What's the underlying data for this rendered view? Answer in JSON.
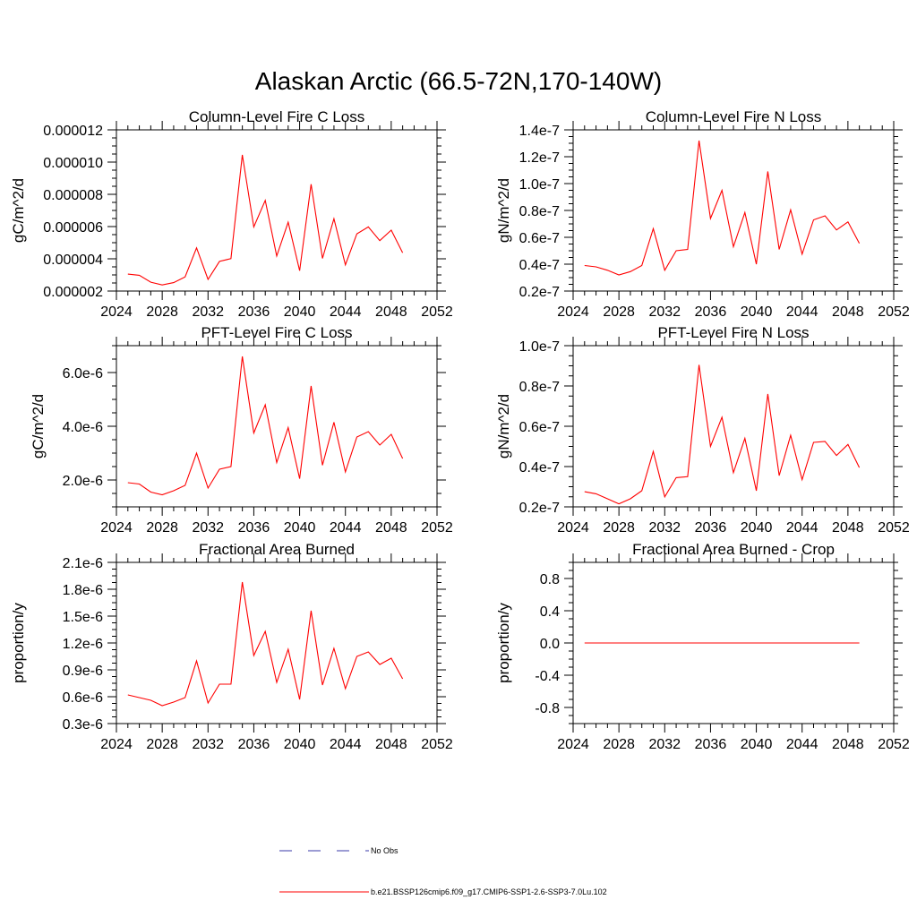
{
  "figure": {
    "title": "Alaskan Arctic (66.5-72N,170-140W)"
  },
  "legend": {
    "entries": [
      {
        "label": "No Obs",
        "color": "#3a3aa8",
        "dash": "dashed"
      },
      {
        "label": "b.e21.BSSP126cmip6.f09_g17.CMIP6-SSP1-2.6-SSP3-7.0Lu.102",
        "color": "#ff0000",
        "dash": "solid"
      }
    ]
  },
  "chart_data": [
    {
      "type": "line",
      "title": "Column-Level Fire C Loss",
      "ylabel": "gC/m^2/d",
      "xlim": [
        2024,
        2052
      ],
      "ylim": [
        2e-06,
        1.2e-05
      ],
      "xticks": [
        2024,
        2028,
        2032,
        2036,
        2040,
        2044,
        2048,
        2052
      ],
      "yticks": [
        2e-06,
        4e-06,
        6e-06,
        8e-06,
        1e-05,
        1.2e-05
      ],
      "ytick_labels": [
        "0.000002",
        "0.000004",
        "0.000006",
        "0.000008",
        "0.000010",
        "0.000012"
      ],
      "x": [
        2025,
        2026,
        2027,
        2028,
        2029,
        2030,
        2031,
        2032,
        2033,
        2034,
        2035,
        2036,
        2037,
        2038,
        2039,
        2040,
        2041,
        2042,
        2043,
        2044,
        2045,
        2046,
        2047,
        2048,
        2049
      ],
      "series": [
        {
          "color": "#ff0000",
          "values": [
            3.05e-06,
            2.98e-06,
            2.55e-06,
            2.38e-06,
            2.52e-06,
            2.88e-06,
            4.68e-06,
            2.72e-06,
            3.84e-06,
            4.01e-06,
            1.045e-05,
            5.98e-06,
            7.62e-06,
            4.17e-06,
            6.27e-06,
            3.26e-06,
            8.63e-06,
            4.02e-06,
            6.49e-06,
            3.63e-06,
            5.55e-06,
            5.98e-06,
            5.13e-06,
            5.78e-06,
            4.38e-06
          ]
        }
      ]
    },
    {
      "type": "line",
      "title": "Column-Level Fire N Loss",
      "ylabel": "gN/m^2/d",
      "xlim": [
        2024,
        2052
      ],
      "ylim": [
        2e-08,
        1.4e-07
      ],
      "xticks": [
        2024,
        2028,
        2032,
        2036,
        2040,
        2044,
        2048,
        2052
      ],
      "yticks": [
        2e-08,
        4e-08,
        6e-08,
        8e-08,
        1e-07,
        1.2e-07,
        1.4e-07
      ],
      "ytick_labels": [
        "0.2e-7",
        "0.4e-7",
        "0.6e-7",
        "0.8e-7",
        "1.0e-7",
        "1.2e-7",
        "1.4e-7"
      ],
      "x": [
        2025,
        2026,
        2027,
        2028,
        2029,
        2030,
        2031,
        2032,
        2033,
        2034,
        2035,
        2036,
        2037,
        2038,
        2039,
        2040,
        2041,
        2042,
        2043,
        2044,
        2045,
        2046,
        2047,
        2048,
        2049
      ],
      "series": [
        {
          "color": "#ff0000",
          "values": [
            3.9e-08,
            3.8e-08,
            3.55e-08,
            3.2e-08,
            3.45e-08,
            3.9e-08,
            6.65e-08,
            3.55e-08,
            5e-08,
            5.1e-08,
            1.32e-07,
            7.4e-08,
            9.5e-08,
            5.3e-08,
            7.85e-08,
            4e-08,
            1.09e-07,
            5.1e-08,
            8.05e-08,
            4.75e-08,
            7.3e-08,
            7.6e-08,
            6.55e-08,
            7.15e-08,
            5.55e-08
          ]
        }
      ]
    },
    {
      "type": "line",
      "title": "PFT-Level Fire C Loss",
      "ylabel": "gC/m^2/d",
      "xlim": [
        2024,
        2052
      ],
      "ylim": [
        1e-06,
        7e-06
      ],
      "xticks": [
        2024,
        2028,
        2032,
        2036,
        2040,
        2044,
        2048,
        2052
      ],
      "yticks": [
        2e-06,
        4e-06,
        6e-06
      ],
      "ytick_labels": [
        "2.0e-6",
        "4.0e-6",
        "6.0e-6"
      ],
      "x": [
        2025,
        2026,
        2027,
        2028,
        2029,
        2030,
        2031,
        2032,
        2033,
        2034,
        2035,
        2036,
        2037,
        2038,
        2039,
        2040,
        2041,
        2042,
        2043,
        2044,
        2045,
        2046,
        2047,
        2048,
        2049
      ],
      "series": [
        {
          "color": "#ff0000",
          "values": [
            1.9e-06,
            1.85e-06,
            1.55e-06,
            1.45e-06,
            1.6e-06,
            1.8e-06,
            3e-06,
            1.7e-06,
            2.4e-06,
            2.5e-06,
            6.6e-06,
            3.75e-06,
            4.8e-06,
            2.65e-06,
            3.95e-06,
            2.05e-06,
            5.5e-06,
            2.55e-06,
            4.15e-06,
            2.3e-06,
            3.6e-06,
            3.8e-06,
            3.3e-06,
            3.7e-06,
            2.8e-06
          ]
        }
      ]
    },
    {
      "type": "line",
      "title": "PFT-Level Fire N Loss",
      "ylabel": "gN/m^2/d",
      "xlim": [
        2024,
        2052
      ],
      "ylim": [
        2e-08,
        1e-07
      ],
      "xticks": [
        2024,
        2028,
        2032,
        2036,
        2040,
        2044,
        2048,
        2052
      ],
      "yticks": [
        2e-08,
        4e-08,
        6e-08,
        8e-08,
        1e-07
      ],
      "ytick_labels": [
        "0.2e-7",
        "0.4e-7",
        "0.6e-7",
        "0.8e-7",
        "1.0e-7"
      ],
      "x": [
        2025,
        2026,
        2027,
        2028,
        2029,
        2030,
        2031,
        2032,
        2033,
        2034,
        2035,
        2036,
        2037,
        2038,
        2039,
        2040,
        2041,
        2042,
        2043,
        2044,
        2045,
        2046,
        2047,
        2048,
        2049
      ],
      "series": [
        {
          "color": "#ff0000",
          "values": [
            2.75e-08,
            2.65e-08,
            2.4e-08,
            2.15e-08,
            2.4e-08,
            2.8e-08,
            4.75e-08,
            2.5e-08,
            3.45e-08,
            3.5e-08,
            9.05e-08,
            5e-08,
            6.45e-08,
            3.7e-08,
            5.4e-08,
            2.8e-08,
            7.6e-08,
            3.55e-08,
            5.55e-08,
            3.35e-08,
            5.2e-08,
            5.25e-08,
            4.55e-08,
            5.1e-08,
            3.95e-08
          ]
        }
      ]
    },
    {
      "type": "line",
      "title": "Fractional Area Burned",
      "ylabel": "proportion/y",
      "xlim": [
        2024,
        2052
      ],
      "ylim": [
        3e-07,
        2.1e-06
      ],
      "xticks": [
        2024,
        2028,
        2032,
        2036,
        2040,
        2044,
        2048,
        2052
      ],
      "yticks": [
        3e-07,
        6e-07,
        9e-07,
        1.2e-06,
        1.5e-06,
        1.8e-06,
        2.1e-06
      ],
      "ytick_labels": [
        "0.3e-6",
        "0.6e-6",
        "0.9e-6",
        "1.2e-6",
        "1.5e-6",
        "1.8e-6",
        "2.1e-6"
      ],
      "x": [
        2025,
        2026,
        2027,
        2028,
        2029,
        2030,
        2031,
        2032,
        2033,
        2034,
        2035,
        2036,
        2037,
        2038,
        2039,
        2040,
        2041,
        2042,
        2043,
        2044,
        2045,
        2046,
        2047,
        2048,
        2049
      ],
      "series": [
        {
          "color": "#ff0000",
          "values": [
            6.2e-07,
            5.9e-07,
            5.6e-07,
            5e-07,
            5.4e-07,
            5.9e-07,
            1e-06,
            5.3e-07,
            7.4e-07,
            7.4e-07,
            1.88e-06,
            1.06e-06,
            1.33e-06,
            7.6e-07,
            1.13e-06,
            5.7e-07,
            1.56e-06,
            7.3e-07,
            1.14e-06,
            6.9e-07,
            1.05e-06,
            1.1e-06,
            9.6e-07,
            1.03e-06,
            8e-07
          ]
        }
      ]
    },
    {
      "type": "line",
      "title": "Fractional Area Burned - Crop",
      "ylabel": "proportion/y",
      "xlim": [
        2024,
        2052
      ],
      "ylim": [
        -1.0,
        1.0
      ],
      "xticks": [
        2024,
        2028,
        2032,
        2036,
        2040,
        2044,
        2048,
        2052
      ],
      "yticks": [
        -0.8,
        -0.4,
        0.0,
        0.4,
        0.8
      ],
      "ytick_labels": [
        "-0.8",
        "-0.4",
        "0.0",
        "0.4",
        "0.8"
      ],
      "x": [
        2025,
        2026,
        2027,
        2028,
        2029,
        2030,
        2031,
        2032,
        2033,
        2034,
        2035,
        2036,
        2037,
        2038,
        2039,
        2040,
        2041,
        2042,
        2043,
        2044,
        2045,
        2046,
        2047,
        2048,
        2049
      ],
      "series": [
        {
          "color": "#ff0000",
          "values": [
            0,
            0,
            0,
            0,
            0,
            0,
            0,
            0,
            0,
            0,
            0,
            0,
            0,
            0,
            0,
            0,
            0,
            0,
            0,
            0,
            0,
            0,
            0,
            0,
            0
          ]
        }
      ]
    }
  ]
}
